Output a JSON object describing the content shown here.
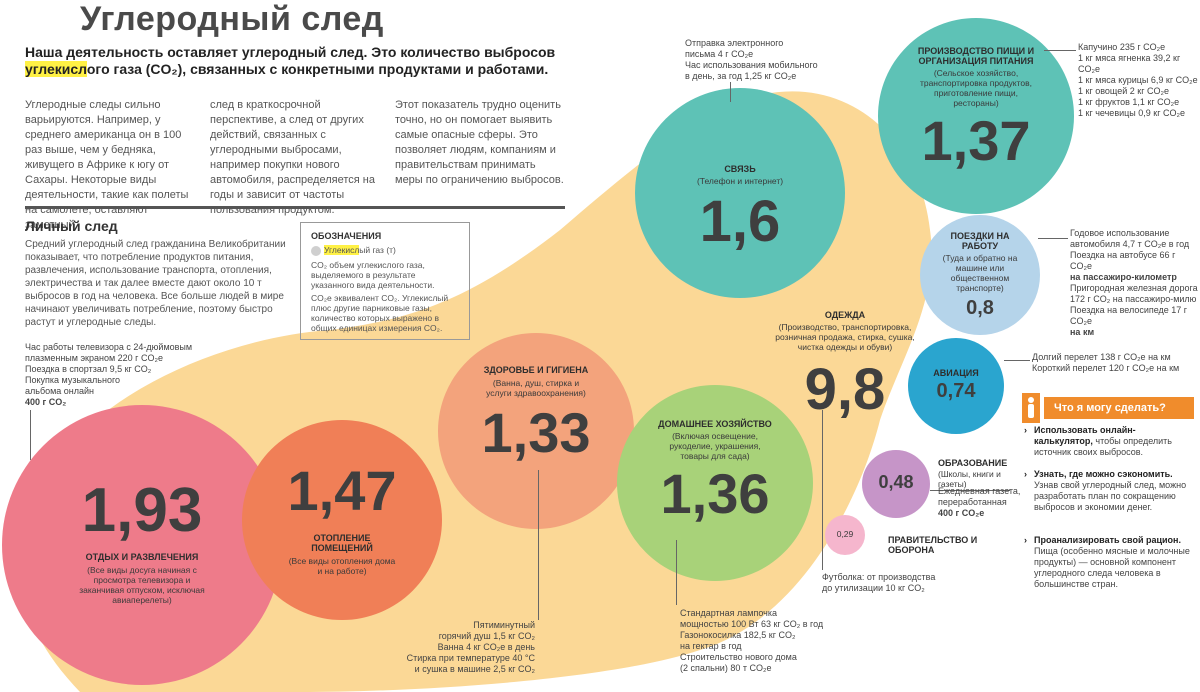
{
  "header": {
    "title": "Углеродный след",
    "lead_pre": "Наша деятельность оставляет углеродный след. Это количество выбросов ",
    "lead_hl": "углекисл",
    "lead_post": "ого газа (CO₂), связанных с конкретными продуктами и работами."
  },
  "intro": {
    "col1": "Углеродные следы сильно варьируются. Например, у среднего американца он в 100 раз выше, чем у бедняка, живущего в Африке к югу от Сахары. Некоторые виды деятельности, такие как полеты на самолете, оставляют заметный",
    "col2": "след в краткосрочной перспективе, а след от других действий, связанных с углеродными выбросами, например покупки нового автомобиля, распределяется на годы и зависит от частоты пользования продуктом.",
    "col3": "Этот показатель трудно оценить точно, но он помогает выявить самые опасные сферы. Это позволяет людям, компаниям и правительствам принимать меры по ограничению выбросов."
  },
  "personal": {
    "title": "Личный след",
    "text": "Средний углеродный след гражданина Великобритании показывает, что потребление продуктов питания, развлечения, использование транспорта, отопления, электричества и так далее вместе дают около 10 т выбросов в год на человека. Все больше людей в мире начинают увеличивать потребление, поэтому быстро растут и углеродные следы."
  },
  "legend": {
    "title": "ОБОЗНАЧЕНИЯ",
    "item1_hl": "Углекисл",
    "item1_rest": "ый газ (т)",
    "item2": "CO₂ объем углекислого газа, выделяемого в результате указанного вида деятельности.",
    "item3": "CO₂e эквивалент CO₂. Углекислый плюс другие парниковые газы, количество которых выражено в общих единицах измерения CO₂."
  },
  "colors": {
    "blob": "#fbd896",
    "leisure": "#ee7b8a",
    "heating": "#f07f57",
    "health": "#f3a37c",
    "household": "#a8d279",
    "communication": "#5ec2b6",
    "food": "#5ec2b6",
    "commute": "#b5d4ea",
    "aviation": "#2aa5cf",
    "education": "#c695c8",
    "government": "#f5b6cd",
    "accent": "#f08c2c",
    "highlight": "#fff145"
  },
  "bubbles": {
    "leisure": {
      "value": "1,93",
      "title": "ОТДЫХ И РАЗВЛЕЧЕНИЯ",
      "sub": "(Все виды досуга начиная с просмотра телевизора и заканчивая отпуском, исключая авиаперелеты)"
    },
    "heating": {
      "value": "1,47",
      "title": "ОТОПЛЕНИЕ ПОМЕЩЕНИЙ",
      "sub": "(Все виды отопления дома и на работе)"
    },
    "health": {
      "value": "1,33",
      "title": "ЗДОРОВЬЕ И ГИГИЕНА",
      "sub": "(Ванна, душ, стирка и услуги здравоохранения)"
    },
    "household": {
      "value": "1,36",
      "title": "ДОМАШНЕЕ ХОЗЯЙСТВО",
      "sub": "(Включая освещение, рукоделие, украшения, товары для сада)"
    },
    "communication": {
      "value": "1,6",
      "title": "СВЯЗЬ",
      "sub": "(Телефон и интернет)"
    },
    "clothing": {
      "value": "9,8",
      "title": "ОДЕЖДА",
      "sub": "(Производство, транспортировка, розничная продажа, стирка, сушка, чистка одежды и обуви)"
    },
    "food": {
      "value": "1,37",
      "title": "ПРОИЗВОДСТВО ПИЩИ И ОРГАНИЗАЦИЯ ПИТАНИЯ",
      "sub": "(Сельское хозяйство, транспортировка продуктов, приготовление пищи, рестораны)"
    },
    "commute": {
      "value": "0,8",
      "title": "ПОЕЗДКИ НА РАБОТУ",
      "sub": "(Туда и обратно на машине или общественном транспорте)"
    },
    "aviation": {
      "value": "0,74",
      "title": "АВИАЦИЯ"
    },
    "education": {
      "value": "0,48",
      "title": "ОБРАЗОВАНИЕ",
      "sub": "(Школы, книги и газеты)"
    },
    "government": {
      "value": "0,29",
      "title": "ПРАВИТЕЛЬСТВО И ОБОРОНА"
    }
  },
  "notes": {
    "leisure": [
      "Час работы телевизора с 24-дюймовым",
      "плазменным экраном 220 г CO₂e",
      "Поездка в спортзал 9,5 кг CO₂",
      "Покупка музыкального",
      "альбома онлайн",
      "400 г CO₂"
    ],
    "health": [
      "Пятиминутный",
      "горячий душ 1,5 кг CO₂",
      "Ванна 4 кг CO₂e в день",
      "Стирка при температуре 40 °C",
      "и сушка в машине 2,5 кг CO₂"
    ],
    "household": [
      "Стандартная лампочка",
      "мощностью 100 Вт 63 кг CO₂ в год",
      "Газонокосилка 182,5 кг CO₂",
      "на гектар в год",
      "Строительство нового дома",
      "(2 спальни) 80 т CO₂e"
    ],
    "communication": [
      "Отправка электронного",
      "письма 4 г CO₂e",
      "Час использования мобильного",
      "в день, за год 1,25 кг CO₂e"
    ],
    "food": [
      "Капучино 235 г CO₂e",
      "1 кг мяса ягненка 39,2 кг CO₂e",
      "1 кг мяса курицы 6,9 кг CO₂e",
      "1 кг овощей 2 кг CO₂e",
      "1 кг фруктов 1,1 кг CO₂e",
      "1 кг чечевицы 0,9 кг CO₂e"
    ],
    "commute": [
      "Годовое использование",
      "автомобиля 4,7 т CO₂e в год",
      "Поездка на автобусе 66 г CO₂e",
      "на пассажиро-километр",
      "Пригородная железная дорога",
      "172 г CO₂ на пассажиро-милю",
      "Поездка на велосипеде 17 г CO₂e",
      "на км"
    ],
    "aviation": [
      "Долгий перелет 138 г CO₂e на км",
      "Короткий перелет 120 г CO₂e на км"
    ],
    "education": [
      "Ежедневная газета,",
      "переработанная",
      "400 г CO₂e"
    ],
    "clothing": [
      "Футболка: от производства",
      "до утилизации 10 кг CO₂"
    ]
  },
  "advice": {
    "title": "Что я могу сделать?",
    "tips": [
      {
        "bold": "Использовать онлайн-калькулятор,",
        "text": " чтобы определить источник своих выбросов."
      },
      {
        "bold": "Узнать, где можно сэкономить.",
        "text": " Узнав свой углеродный след, можно разработать план по сокращению выбросов и экономии денег."
      },
      {
        "bold": "Проанализировать свой рацион.",
        "text": " Пища (особенно мясные и молочные продукты) — основной компонент углеродного следа человека в большинстве стран."
      }
    ]
  }
}
